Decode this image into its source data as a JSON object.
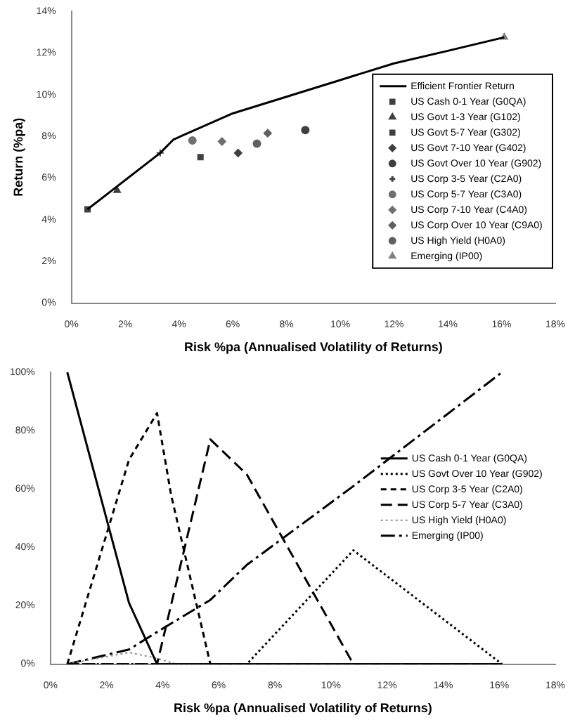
{
  "chart_data": [
    {
      "type": "scatter",
      "xlabel": "Risk %pa (Annualised Volatility of Returns)",
      "ylabel": "Return (%pa)",
      "xlim": [
        0,
        18
      ],
      "ylim": [
        0,
        14
      ],
      "xticks": [
        {
          "value": 0,
          "label": "0%"
        },
        {
          "value": 2,
          "label": "2%"
        },
        {
          "value": 4,
          "label": "4%"
        },
        {
          "value": 6,
          "label": "6%"
        },
        {
          "value": 8,
          "label": "8%"
        },
        {
          "value": 10,
          "label": "10%"
        },
        {
          "value": 12,
          "label": "12%"
        },
        {
          "value": 14,
          "label": "14%"
        },
        {
          "value": 16,
          "label": "16%"
        },
        {
          "value": 18,
          "label": "18%"
        }
      ],
      "yticks": [
        {
          "value": 0,
          "label": "0%"
        },
        {
          "value": 2,
          "label": "2%"
        },
        {
          "value": 4,
          "label": "4%"
        },
        {
          "value": 6,
          "label": "6%"
        },
        {
          "value": 8,
          "label": "8%"
        },
        {
          "value": 10,
          "label": "10%"
        },
        {
          "value": 12,
          "label": "12%"
        },
        {
          "value": 14,
          "label": "14%"
        }
      ],
      "grid": false,
      "legend": "right",
      "series": [
        {
          "name": "Efficient Frontier Return",
          "type": "line",
          "marker": "none",
          "line_style": "solid",
          "color": "#000000",
          "x": [
            0.6,
            1.7,
            3.3,
            3.8,
            6,
            8,
            10,
            12,
            14,
            16.1
          ],
          "values": [
            4.5,
            5.6,
            7.2,
            7.85,
            9.1,
            9.9,
            10.7,
            11.5,
            12.1,
            12.75
          ]
        },
        {
          "name": "US Cash 0-1 Year (G0QA)",
          "marker": "square",
          "color": "#404040",
          "x": [
            0.6
          ],
          "values": [
            4.5
          ]
        },
        {
          "name": "US Govt 1-3 Year (G102)",
          "marker": "triangle",
          "color": "#404040",
          "x": [
            1.7
          ],
          "values": [
            5.4
          ]
        },
        {
          "name": "US Govt 5-7 Year (G302)",
          "marker": "square",
          "color": "#404040",
          "x": [
            4.8
          ],
          "values": [
            7.0
          ]
        },
        {
          "name": "US Govt 7-10 Year (G402)",
          "marker": "diamond",
          "color": "#404040",
          "x": [
            6.2
          ],
          "values": [
            7.2
          ]
        },
        {
          "name": "US Govt Over 10 Year (G902)",
          "marker": "circle",
          "color": "#404040",
          "x": [
            8.7
          ],
          "values": [
            8.3
          ]
        },
        {
          "name": "US Corp 3-5 Year (C2A0)",
          "marker": "cross",
          "color": "#404040",
          "x": [
            3.3
          ],
          "values": [
            7.2
          ]
        },
        {
          "name": "US Corp 5-7 Year (C3A0)",
          "marker": "circle",
          "color": "#707070",
          "x": [
            4.5
          ],
          "values": [
            7.8
          ]
        },
        {
          "name": "US Corp 7-10 Year (C4A0)",
          "marker": "diamond",
          "color": "#707070",
          "x": [
            5.6
          ],
          "values": [
            7.75
          ]
        },
        {
          "name": "US Corp Over 10 Year (C9A0)",
          "marker": "diamond",
          "color": "#606060",
          "x": [
            7.3
          ],
          "values": [
            8.15
          ]
        },
        {
          "name": "US High Yield (H0A0)",
          "marker": "circle",
          "color": "#606060",
          "x": [
            6.9
          ],
          "values": [
            7.65
          ]
        },
        {
          "name": "Emerging (IP00)",
          "marker": "triangle",
          "color": "#808080",
          "x": [
            16.1
          ],
          "values": [
            12.75
          ]
        }
      ]
    },
    {
      "type": "line",
      "xlabel": "Risk %pa (Annualised Volatility of Returns)",
      "xlim": [
        0,
        18
      ],
      "ylim": [
        0,
        100
      ],
      "xticks": [
        {
          "value": 0,
          "label": "0%"
        },
        {
          "value": 2,
          "label": "2%"
        },
        {
          "value": 4,
          "label": "4%"
        },
        {
          "value": 6,
          "label": "6%"
        },
        {
          "value": 8,
          "label": "8%"
        },
        {
          "value": 10,
          "label": "10%"
        },
        {
          "value": 12,
          "label": "12%"
        },
        {
          "value": 14,
          "label": "14%"
        },
        {
          "value": 16,
          "label": "16%"
        },
        {
          "value": 18,
          "label": "18%"
        }
      ],
      "yticks": [
        {
          "value": 0,
          "label": "0%"
        },
        {
          "value": 20,
          "label": "20%"
        },
        {
          "value": 40,
          "label": "40%"
        },
        {
          "value": 60,
          "label": "60%"
        },
        {
          "value": 80,
          "label": "80%"
        },
        {
          "value": 100,
          "label": "100%"
        }
      ],
      "grid": false,
      "legend": "right",
      "marker": "none",
      "series": [
        {
          "name": "US Cash 0-1 Year (G0QA)",
          "line_style": "solid",
          "color": "#000000",
          "x": [
            0.6,
            2.8,
            3.8,
            16.1
          ],
          "values": [
            100,
            21,
            0,
            0
          ]
        },
        {
          "name": "US Govt Over 10 Year (G902)",
          "line_style": "dotted",
          "color": "#000000",
          "x": [
            0.6,
            7.0,
            10.8,
            16.1
          ],
          "values": [
            0,
            0,
            39,
            0
          ]
        },
        {
          "name": "US Corp 3-5 Year (C2A0)",
          "line_style": "dashed",
          "color": "#000000",
          "x": [
            0.6,
            2.8,
            3.8,
            4.3,
            5.7,
            16.1
          ],
          "values": [
            0,
            70,
            86,
            58,
            0,
            0
          ]
        },
        {
          "name": "US Corp 5-7 Year (C3A0)",
          "line_style": "dashed",
          "color": "#000000",
          "x": [
            0.6,
            3.8,
            5.7,
            7.0,
            10.8,
            16.1
          ],
          "values": [
            0,
            0,
            77,
            65,
            0,
            0
          ]
        },
        {
          "name": "US High Yield (H0A0)",
          "line_style": "dotted",
          "color": "#909090",
          "x": [
            0.6,
            2.8,
            3.8,
            4.5
          ],
          "values": [
            0,
            4,
            2,
            0
          ]
        },
        {
          "name": "Emerging (IP00)",
          "line_style": "dashed",
          "color": "#000000",
          "x": [
            0.6,
            2.8,
            3.8,
            5.7,
            7.0,
            10.8,
            16.1
          ],
          "values": [
            0,
            5,
            11,
            22,
            34,
            61,
            100
          ]
        }
      ]
    }
  ]
}
